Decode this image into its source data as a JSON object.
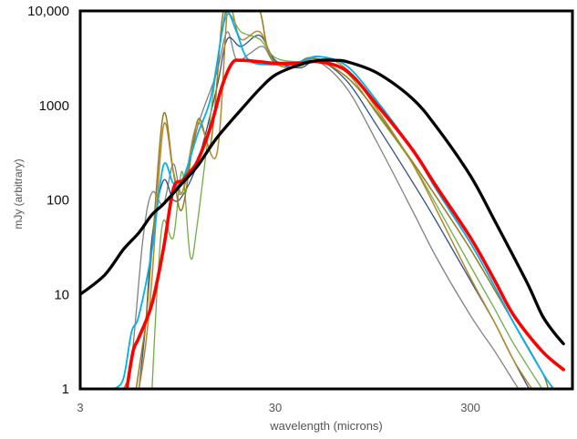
{
  "chart_data": {
    "type": "line",
    "title": "",
    "xlabel": "wavelength (microns)",
    "ylabel": "mJy (arbitrary)",
    "x_scale": "log",
    "y_scale": "log",
    "xlim": [
      3,
      1000
    ],
    "ylim": [
      1,
      10000
    ],
    "x_ticks": [
      {
        "value": 3,
        "label": "3"
      },
      {
        "value": 30,
        "label": "30"
      },
      {
        "value": 300,
        "label": "300"
      }
    ],
    "y_ticks": [
      {
        "value": 1,
        "label": "1"
      },
      {
        "value": 10,
        "label": "10"
      },
      {
        "value": 100,
        "label": "100"
      },
      {
        "value": 1000,
        "label": "1000"
      },
      {
        "value": 10000,
        "label": "10,000"
      }
    ],
    "grid": false,
    "legend": "none",
    "series": [
      {
        "color": "#808080",
        "width": 1.3,
        "points": [
          [
            5,
            1
          ],
          [
            5.5,
            2
          ],
          [
            6.3,
            40
          ],
          [
            7,
            120
          ],
          [
            8,
            90
          ],
          [
            9,
            240
          ],
          [
            10,
            120
          ],
          [
            12,
            600
          ],
          [
            15,
            2200
          ],
          [
            17,
            6000
          ],
          [
            19,
            3000
          ],
          [
            22,
            3500
          ],
          [
            26,
            4200
          ],
          [
            30,
            2800
          ],
          [
            40,
            2700
          ],
          [
            50,
            2900
          ],
          [
            70,
            1500
          ],
          [
            100,
            400
          ],
          [
            150,
            80
          ],
          [
            200,
            25
          ],
          [
            300,
            6
          ],
          [
            400,
            2.5
          ],
          [
            500,
            1.2
          ],
          [
            530,
            1
          ]
        ]
      },
      {
        "color": "#2E4F8A",
        "width": 1.3,
        "points": [
          [
            6,
            1
          ],
          [
            6.5,
            5
          ],
          [
            7,
            40
          ],
          [
            8,
            160
          ],
          [
            9,
            100
          ],
          [
            10,
            110
          ],
          [
            12,
            250
          ],
          [
            15,
            1500
          ],
          [
            17,
            5000
          ],
          [
            20,
            4200
          ],
          [
            25,
            5500
          ],
          [
            30,
            3000
          ],
          [
            40,
            2500
          ],
          [
            50,
            3000
          ],
          [
            70,
            1800
          ],
          [
            100,
            600
          ],
          [
            150,
            160
          ],
          [
            200,
            60
          ],
          [
            300,
            14
          ],
          [
            400,
            5
          ],
          [
            500,
            2
          ],
          [
            600,
            1
          ]
        ]
      },
      {
        "color": "#70AD47",
        "width": 1.3,
        "points": [
          [
            7,
            1
          ],
          [
            7.5,
            15
          ],
          [
            8,
            60
          ],
          [
            9,
            40
          ],
          [
            10,
            200
          ],
          [
            11,
            25
          ],
          [
            12,
            60
          ],
          [
            15,
            2500
          ],
          [
            17,
            9000
          ],
          [
            20,
            6000
          ],
          [
            25,
            5000
          ],
          [
            30,
            3200
          ],
          [
            40,
            2900
          ],
          [
            50,
            3100
          ],
          [
            70,
            2200
          ],
          [
            100,
            800
          ],
          [
            150,
            250
          ],
          [
            200,
            90
          ],
          [
            300,
            20
          ],
          [
            400,
            7
          ],
          [
            500,
            3
          ],
          [
            700,
            1
          ]
        ]
      },
      {
        "color": "#9C7A1A",
        "width": 1.5,
        "points": [
          [
            5.8,
            1
          ],
          [
            6.2,
            2.5
          ],
          [
            6.5,
            5
          ],
          [
            7,
            30
          ],
          [
            8,
            800
          ],
          [
            9,
            200
          ],
          [
            10,
            80
          ],
          [
            12,
            700
          ],
          [
            14,
            400
          ],
          [
            16,
            8000
          ],
          [
            17,
            10000
          ],
          [
            19,
            10000
          ],
          [
            22,
            10000
          ],
          [
            25,
            10000
          ],
          [
            28,
            3500
          ],
          [
            35,
            2500
          ],
          [
            45,
            3200
          ],
          [
            60,
            2500
          ],
          [
            80,
            1500
          ],
          [
            120,
            500
          ],
          [
            180,
            150
          ],
          [
            300,
            30
          ],
          [
            500,
            5
          ],
          [
            700,
            1.5
          ],
          [
            750,
            1
          ]
        ]
      },
      {
        "color": "#B08A2E",
        "width": 1.5,
        "points": [
          [
            6,
            1
          ],
          [
            6.5,
            3
          ],
          [
            7,
            15
          ],
          [
            8,
            600
          ],
          [
            9,
            200
          ],
          [
            10,
            120
          ],
          [
            12,
            650
          ],
          [
            15,
            300
          ],
          [
            17,
            10000
          ],
          [
            18,
            10000
          ],
          [
            20,
            5000
          ],
          [
            25,
            6000
          ],
          [
            30,
            2800
          ],
          [
            40,
            2600
          ],
          [
            50,
            3300
          ],
          [
            70,
            2400
          ],
          [
            100,
            900
          ],
          [
            150,
            250
          ],
          [
            200,
            80
          ],
          [
            300,
            15
          ],
          [
            400,
            5
          ],
          [
            500,
            2
          ],
          [
            620,
            1
          ]
        ]
      },
      {
        "color": "#00B0F0",
        "width": 1.8,
        "points": [
          [
            4.5,
            1
          ],
          [
            5,
            1.3
          ],
          [
            5.5,
            4
          ],
          [
            6,
            6
          ],
          [
            7,
            30
          ],
          [
            8,
            230
          ],
          [
            9,
            150
          ],
          [
            10,
            160
          ],
          [
            12,
            500
          ],
          [
            14,
            1200
          ],
          [
            16,
            6000
          ],
          [
            17,
            10000
          ],
          [
            19,
            6000
          ],
          [
            22,
            3000
          ],
          [
            30,
            2700
          ],
          [
            40,
            2900
          ],
          [
            50,
            3300
          ],
          [
            70,
            2600
          ],
          [
            100,
            1100
          ],
          [
            150,
            350
          ],
          [
            200,
            130
          ],
          [
            300,
            35
          ],
          [
            400,
            12
          ],
          [
            500,
            5
          ],
          [
            700,
            1.5
          ],
          [
            800,
            1
          ]
        ]
      },
      {
        "color": "#FF0000",
        "width": 3.6,
        "points": [
          [
            5.2,
            1
          ],
          [
            5.6,
            2.5
          ],
          [
            6,
            3.5
          ],
          [
            7,
            8
          ],
          [
            8,
            30
          ],
          [
            9,
            130
          ],
          [
            10,
            160
          ],
          [
            11,
            200
          ],
          [
            12,
            260
          ],
          [
            14,
            600
          ],
          [
            16,
            1600
          ],
          [
            18,
            2800
          ],
          [
            20,
            3000
          ],
          [
            25,
            2900
          ],
          [
            30,
            2800
          ],
          [
            40,
            2800
          ],
          [
            50,
            2900
          ],
          [
            70,
            2300
          ],
          [
            100,
            1000
          ],
          [
            150,
            350
          ],
          [
            200,
            140
          ],
          [
            300,
            40
          ],
          [
            400,
            14
          ],
          [
            500,
            6
          ],
          [
            700,
            2.5
          ],
          [
            900,
            1.6
          ]
        ]
      },
      {
        "color": "#000000",
        "width": 3.3,
        "points": [
          [
            3,
            10
          ],
          [
            4,
            16
          ],
          [
            5,
            30
          ],
          [
            6,
            45
          ],
          [
            7,
            70
          ],
          [
            8,
            90
          ],
          [
            10,
            150
          ],
          [
            12,
            230
          ],
          [
            15,
            450
          ],
          [
            20,
            900
          ],
          [
            25,
            1500
          ],
          [
            30,
            2100
          ],
          [
            40,
            2700
          ],
          [
            50,
            3000
          ],
          [
            60,
            3000
          ],
          [
            70,
            2900
          ],
          [
            100,
            2200
          ],
          [
            150,
            1200
          ],
          [
            200,
            600
          ],
          [
            300,
            180
          ],
          [
            400,
            60
          ],
          [
            500,
            25
          ],
          [
            600,
            12
          ],
          [
            700,
            6
          ],
          [
            800,
            4
          ],
          [
            900,
            3
          ]
        ]
      }
    ]
  }
}
